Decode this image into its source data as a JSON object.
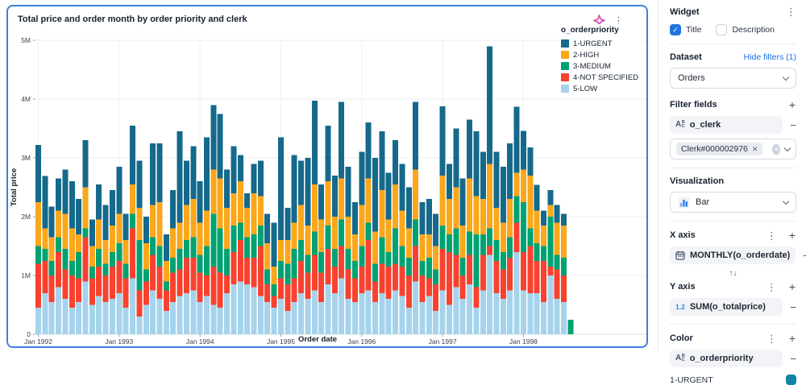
{
  "card": {
    "title": "Total price and order month by order priority and clerk"
  },
  "legend": {
    "title": "o_orderpriority",
    "items": [
      {
        "label": "1-URGENT",
        "color": "#15698b"
      },
      {
        "label": "2-HIGH",
        "color": "#fba71b"
      },
      {
        "label": "3-MEDIUM",
        "color": "#00a272"
      },
      {
        "label": "4-NOT SPECIFIED",
        "color": "#f8422f"
      },
      {
        "label": "5-LOW",
        "color": "#a6d3ec"
      }
    ]
  },
  "chart_data": {
    "type": "bar",
    "stacked": true,
    "title": "Total price and order month by order priority and clerk",
    "xlabel": "Order date",
    "ylabel": "Total price",
    "unit": "millions",
    "ylim": [
      0,
      5
    ],
    "ytick_labels": [
      "0",
      "1M",
      "2M",
      "3M",
      "4M",
      "5M"
    ],
    "start_month": "1992-01",
    "num_months": 80,
    "x_ticks": [
      {
        "index": 0,
        "label": "Jan 1992"
      },
      {
        "index": 12,
        "label": "Jan 1993"
      },
      {
        "index": 24,
        "label": "Jan 1994"
      },
      {
        "index": 36,
        "label": "Jan 1995"
      },
      {
        "index": 48,
        "label": "Jan 1996"
      },
      {
        "index": 60,
        "label": "Jan 1997"
      },
      {
        "index": 72,
        "label": "Jan 1998"
      }
    ],
    "stack_bottom_to_top": [
      "5-LOW",
      "4-NOT SPECIFIED",
      "3-MEDIUM",
      "2-HIGH",
      "1-URGENT"
    ],
    "series": [
      {
        "name": "1-URGENT",
        "color": "#15698b",
        "values": [
          0.97,
          0.89,
          0.52,
          0.55,
          0.75,
          0.8,
          0.6,
          0.8,
          0.45,
          0.6,
          0.6,
          0.6,
          0.8,
          0.45,
          1.0,
          0.8,
          0.45,
          1.05,
          1.0,
          0.45,
          0.65,
          1.55,
          0.75,
          0.9,
          0.7,
          1.25,
          1.1,
          1.1,
          0.65,
          0.8,
          0.45,
          0.25,
          0.5,
          0.6,
          0.5,
          0.75,
          1.75,
          0.55,
          1.15,
          0.75,
          1.15,
          1.42,
          0.6,
          0.95,
          0.7,
          1.3,
          0.85,
          0.55,
          0.9,
          0.95,
          1.25,
          1.0,
          0.8,
          0.75,
          0.8,
          0.7,
          1.15,
          0.55,
          0.6,
          0.55,
          1.18,
          0.6,
          1.0,
          0.8,
          1.0,
          1.1,
          0.8,
          2.0,
          0.95,
          0.95,
          0.95,
          1.12,
          0.66,
          0.48,
          0.44,
          0.25,
          0.25,
          0.3,
          0.2,
          0.0
        ]
      },
      {
        "name": "2-HIGH",
        "color": "#fba71b",
        "values": [
          0.75,
          0.35,
          0.4,
          0.45,
          0.6,
          0.55,
          0.3,
          0.7,
          0.35,
          0.5,
          0.4,
          0.45,
          0.5,
          0.4,
          0.5,
          0.55,
          0.45,
          0.55,
          0.75,
          0.35,
          0.5,
          0.45,
          0.6,
          0.65,
          0.55,
          0.6,
          0.75,
          0.85,
          0.7,
          0.55,
          0.7,
          0.5,
          0.7,
          0.5,
          0.45,
          0.3,
          0.35,
          0.4,
          0.45,
          0.6,
          0.5,
          0.8,
          0.55,
          0.75,
          0.55,
          0.7,
          0.55,
          0.45,
          0.7,
          0.75,
          0.55,
          0.8,
          0.55,
          0.75,
          0.6,
          0.5,
          0.85,
          0.45,
          0.4,
          0.4,
          0.85,
          0.6,
          0.7,
          0.55,
          0.9,
          0.65,
          0.6,
          1.1,
          0.55,
          0.5,
          0.65,
          0.4,
          0.55,
          0.9,
          0.55,
          0.35,
          0.2,
          0.55,
          0.55,
          0.0
        ]
      },
      {
        "name": "3-MEDIUM",
        "color": "#00a272",
        "values": [
          0.3,
          0.2,
          0.25,
          0.25,
          0.35,
          0.25,
          0.45,
          0.15,
          0.2,
          0.3,
          0.2,
          0.25,
          0.3,
          0.25,
          0.25,
          0.85,
          0.2,
          0.3,
          0.35,
          0.15,
          0.25,
          0.35,
          0.3,
          0.35,
          0.3,
          0.5,
          0.9,
          0.75,
          0.45,
          0.45,
          0.3,
          0.35,
          0.4,
          0.35,
          0.25,
          0.2,
          0.3,
          0.35,
          0.5,
          0.35,
          0.3,
          0.4,
          0.35,
          0.4,
          0.3,
          0.45,
          0.35,
          0.3,
          0.35,
          0.3,
          0.3,
          0.45,
          0.25,
          0.6,
          0.35,
          0.3,
          0.45,
          0.25,
          0.35,
          0.25,
          0.4,
          0.3,
          0.45,
          0.3,
          0.4,
          0.9,
          0.35,
          0.3,
          0.35,
          0.3,
          0.35,
          0.45,
          0.85,
          0.3,
          0.3,
          0.25,
          0.85,
          0.25,
          0.3,
          0.25
        ]
      },
      {
        "name": "4-NOT SPECIFIED",
        "color": "#f8422f",
        "values": [
          0.75,
          0.55,
          0.45,
          0.6,
          0.5,
          0.55,
          0.4,
          0.75,
          0.45,
          0.5,
          0.45,
          0.55,
          0.55,
          0.5,
          0.85,
          0.45,
          0.4,
          0.6,
          0.55,
          0.35,
          0.5,
          0.45,
          0.6,
          0.55,
          0.5,
          0.35,
          0.65,
          0.6,
          0.3,
          0.55,
          0.7,
          0.45,
          0.5,
          0.85,
          0.3,
          0.2,
          0.35,
          0.45,
          0.4,
          0.55,
          0.45,
          0.6,
          0.5,
          0.6,
          0.45,
          0.55,
          0.5,
          0.4,
          0.45,
          0.85,
          0.35,
          0.5,
          0.55,
          0.45,
          0.5,
          0.55,
          0.6,
          0.45,
          0.3,
          0.45,
          0.7,
          0.9,
          0.55,
          0.4,
          0.5,
          0.35,
          0.6,
          0.15,
          0.55,
          0.5,
          0.55,
          0.5,
          0.65,
          0.8,
          0.55,
          0.7,
          0.15,
          0.5,
          0.45,
          0.0
        ]
      },
      {
        "name": "5-LOW",
        "color": "#a6d3ec",
        "values": [
          0.45,
          0.7,
          0.55,
          0.8,
          0.6,
          0.45,
          0.55,
          0.9,
          0.5,
          0.65,
          0.55,
          0.6,
          0.7,
          0.45,
          0.95,
          0.3,
          0.5,
          0.75,
          0.6,
          0.4,
          0.55,
          0.65,
          0.7,
          0.75,
          0.55,
          0.65,
          0.5,
          0.45,
          0.7,
          0.85,
          0.9,
          0.85,
          0.8,
          0.65,
          0.55,
          0.45,
          0.6,
          0.4,
          0.55,
          0.7,
          0.6,
          0.75,
          0.55,
          0.85,
          0.7,
          0.95,
          0.6,
          0.55,
          0.7,
          0.75,
          0.55,
          0.7,
          0.6,
          0.75,
          0.65,
          0.45,
          0.9,
          0.55,
          0.65,
          0.4,
          0.75,
          0.5,
          0.8,
          0.6,
          0.85,
          0.45,
          0.75,
          1.35,
          0.7,
          0.6,
          0.75,
          1.4,
          0.75,
          0.7,
          0.7,
          0.55,
          1.0,
          0.6,
          0.55,
          0.0
        ]
      }
    ]
  },
  "panel": {
    "widget": {
      "label": "Widget",
      "title_checkbox": {
        "label": "Title",
        "checked": true
      },
      "description_checkbox": {
        "label": "Description",
        "checked": false
      }
    },
    "dataset": {
      "label": "Dataset",
      "link": "Hide filters (1)",
      "selected": "Orders"
    },
    "filter_fields": {
      "label": "Filter fields",
      "field": "o_clerk",
      "chip": "Clerk#000002976"
    },
    "visualization": {
      "label": "Visualization",
      "selected": "Bar"
    },
    "x_axis": {
      "label": "X axis",
      "field": "MONTHLY(o_orderdate)"
    },
    "y_axis": {
      "label": "Y axis",
      "field": "SUM(o_totalprice)"
    },
    "color": {
      "label": "Color",
      "field": "o_orderpriority",
      "first_value": {
        "label": "1-URGENT",
        "color": "#1483a8"
      }
    }
  }
}
